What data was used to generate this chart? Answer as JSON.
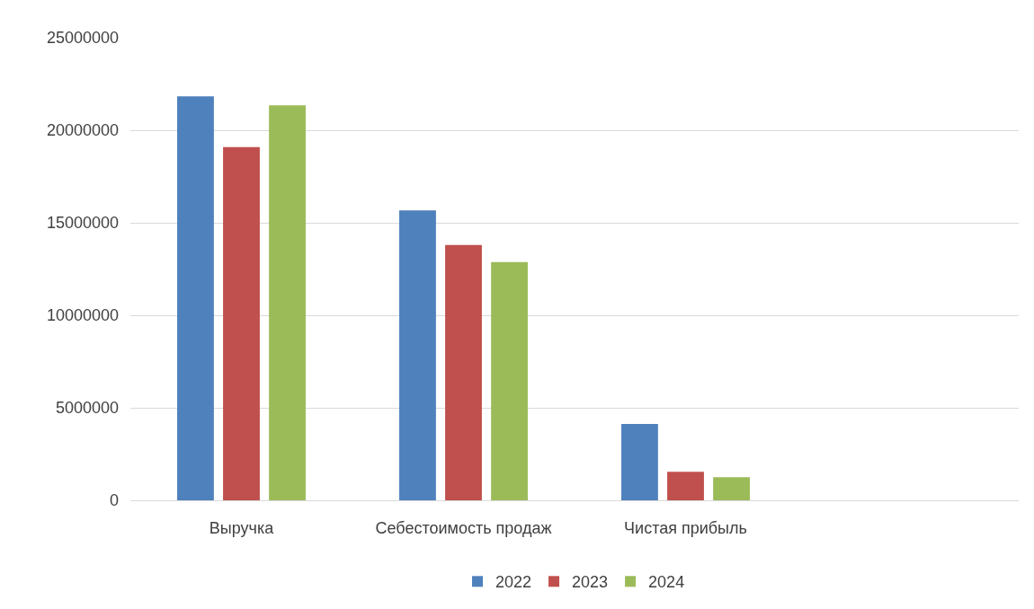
{
  "chart_data": {
    "type": "bar",
    "categories": [
      "Выручка",
      "Себестоимость продаж",
      "Чистая прибыль",
      null
    ],
    "series": [
      {
        "name": "2022",
        "color": "#4f81bd",
        "values": [
          21830000,
          15670000,
          4130000,
          null
        ]
      },
      {
        "name": "2023",
        "color": "#c0504d",
        "values": [
          19090000,
          13800000,
          1540000,
          null
        ]
      },
      {
        "name": "2024",
        "color": "#9bbb59",
        "values": [
          21350000,
          12880000,
          1250000,
          null
        ]
      }
    ],
    "ylim": [
      0,
      25000000
    ],
    "yticks": [
      0,
      5000000,
      10000000,
      15000000,
      20000000,
      25000000
    ],
    "grid": "y",
    "legend": "bottom"
  }
}
